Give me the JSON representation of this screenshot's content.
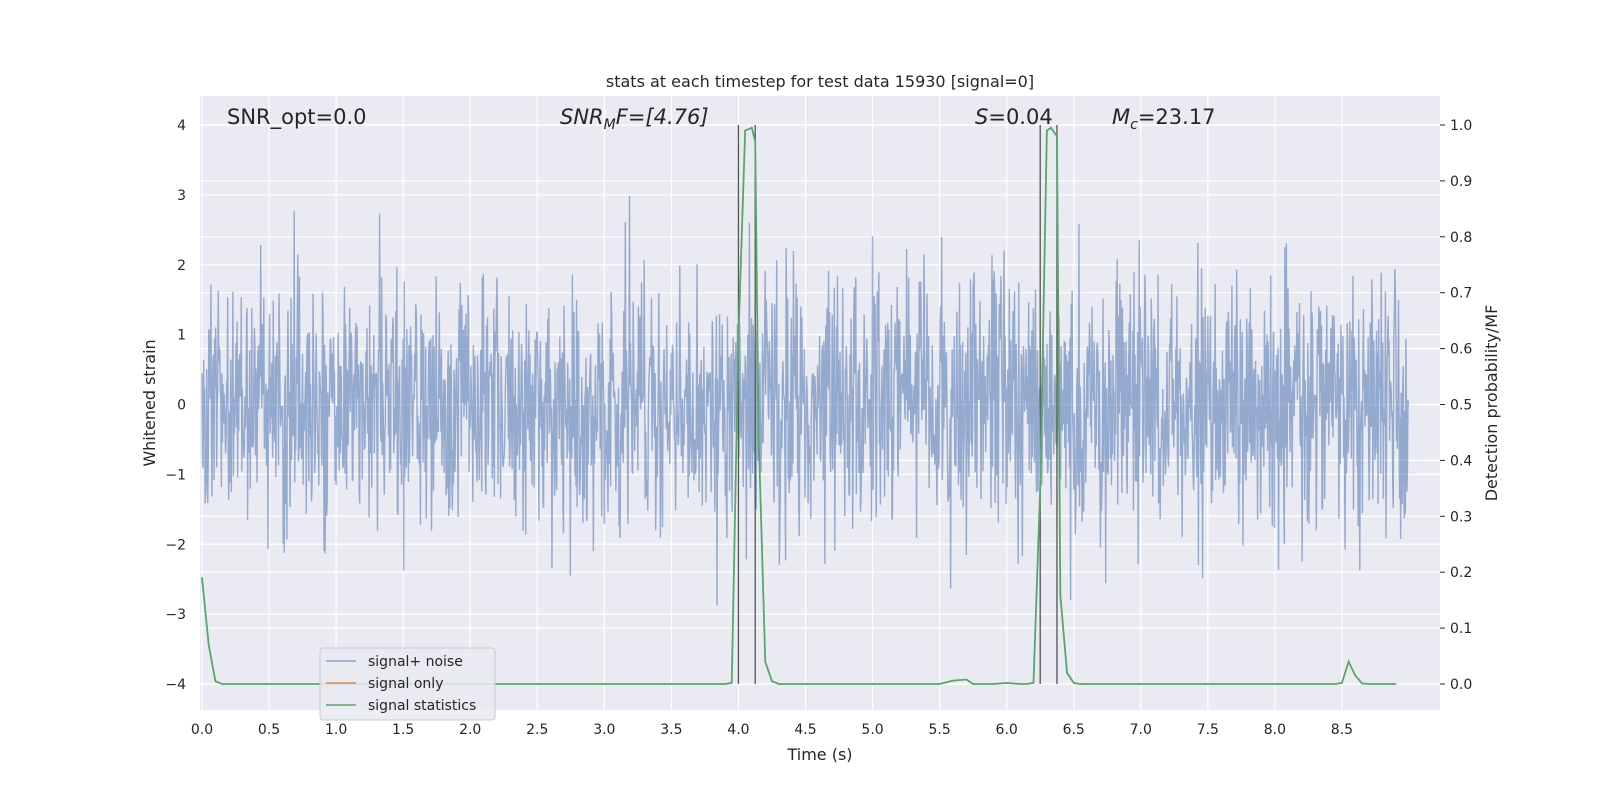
{
  "chart_data": {
    "type": "line",
    "title": "stats at each timestep for test data 15930 [signal=0]",
    "xlabel": "Time (s)",
    "ylabel": "Whitened strain",
    "y2label": "Detection probability/MF",
    "xlim": [
      0.0,
      9.0
    ],
    "ylim": [
      -4.4,
      4.4
    ],
    "y2lim": [
      -0.05,
      1.05
    ],
    "xticks": [
      "0.0",
      "0.5",
      "1.0",
      "1.5",
      "2.0",
      "2.5",
      "3.0",
      "3.5",
      "4.0",
      "4.5",
      "5.0",
      "5.5",
      "6.0",
      "6.5",
      "7.0",
      "7.5",
      "8.0",
      "8.5"
    ],
    "yticks": [
      "4",
      "3",
      "2",
      "1",
      "0",
      "−1",
      "−2",
      "−3",
      "−4"
    ],
    "y2ticks": [
      "1.0",
      "0.9",
      "0.8",
      "0.7",
      "0.6",
      "0.5",
      "0.4",
      "0.3",
      "0.2",
      "0.1",
      "0.0"
    ],
    "grid": true,
    "legend_placement": "lower-left",
    "annotations": {
      "snr_opt": "SNR_opt=0.0",
      "snr_mf_label": "SNR",
      "snr_mf_sub": "M",
      "snr_mf_value": "F=[4.76]",
      "s_label": "S",
      "s_value": "=0.04",
      "mc_label": "M",
      "mc_sub": "c",
      "mc_value": "=23.17"
    },
    "vertical_lines": [
      4.0,
      4.125,
      6.25,
      6.375
    ],
    "series": [
      {
        "name": "signal+ noise",
        "color": "#4c72b0",
        "kind": "noise",
        "std": 0.9,
        "sample_rate": 256
      },
      {
        "name": "signal only",
        "color": "#dd8452",
        "kind": "line",
        "x": [],
        "y": []
      },
      {
        "name": "signal statistics",
        "color": "#55a868",
        "kind": "line",
        "axis": "right",
        "x": [
          0.0,
          0.05,
          0.1,
          0.15,
          0.2,
          0.5,
          1.0,
          1.5,
          2.0,
          2.5,
          3.0,
          3.5,
          3.9,
          3.95,
          4.0,
          4.05,
          4.1,
          4.125,
          4.15,
          4.2,
          4.25,
          4.3,
          4.5,
          5.0,
          5.5,
          5.6,
          5.7,
          5.75,
          5.8,
          5.9,
          6.0,
          6.1,
          6.15,
          6.2,
          6.25,
          6.3,
          6.33,
          6.375,
          6.4,
          6.45,
          6.5,
          6.55,
          6.6,
          7.0,
          7.5,
          8.0,
          8.45,
          8.5,
          8.55,
          8.6,
          8.65,
          8.7,
          8.8,
          8.9
        ],
        "y": [
          0.19,
          0.07,
          0.005,
          0.0,
          0.0,
          0.0,
          0.0,
          0.0,
          0.0,
          0.0,
          0.0,
          0.0,
          0.0,
          0.002,
          0.62,
          0.99,
          0.995,
          0.97,
          0.45,
          0.04,
          0.005,
          0.0,
          0.0,
          0.0,
          0.0,
          0.006,
          0.008,
          0.0,
          0.0,
          0.0,
          0.002,
          0.0,
          0.0,
          0.002,
          0.35,
          0.99,
          0.995,
          0.98,
          0.16,
          0.02,
          0.002,
          0.0,
          0.0,
          0.0,
          0.0,
          0.0,
          0.0,
          0.002,
          0.04,
          0.015,
          0.001,
          0.0,
          0.0,
          0.0
        ]
      }
    ]
  }
}
